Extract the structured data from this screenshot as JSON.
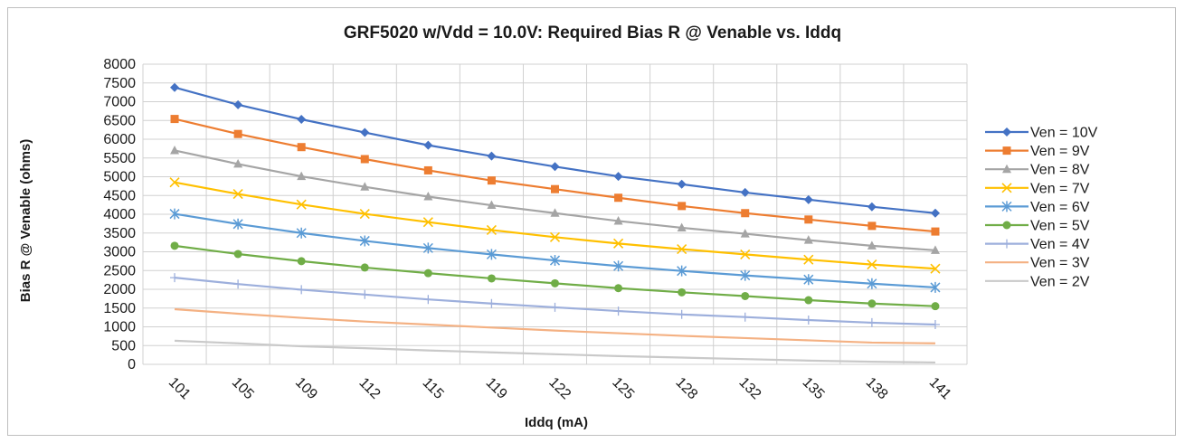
{
  "chart_data": {
    "type": "line",
    "title": "GRF5020 w/Vdd = 10.0V:  Required Bias R @ Venable vs. Iddq",
    "xlabel": "Iddq (mA)",
    "ylabel": "Bias R @ Venable (ohms)",
    "categories": [
      "101",
      "105",
      "109",
      "112",
      "115",
      "119",
      "122",
      "125",
      "128",
      "132",
      "135",
      "138",
      "141"
    ],
    "ylim": [
      0,
      8000
    ],
    "yticks": [
      0,
      500,
      1000,
      1500,
      2000,
      2500,
      3000,
      3500,
      4000,
      4500,
      5000,
      5500,
      6000,
      6500,
      7000,
      7500,
      8000
    ],
    "grid": true,
    "legend_position": "right",
    "series": [
      {
        "name": "Ven = 10V",
        "color": "#4472c4",
        "marker": "diamond",
        "values": [
          7380,
          6920,
          6530,
          6180,
          5840,
          5550,
          5270,
          5010,
          4800,
          4580,
          4390,
          4200,
          4030
        ]
      },
      {
        "name": "Ven = 9V",
        "color": "#ed7d31",
        "marker": "square",
        "values": [
          6540,
          6140,
          5790,
          5470,
          5170,
          4900,
          4670,
          4440,
          4220,
          4030,
          3860,
          3690,
          3540
        ]
      },
      {
        "name": "Ven = 8V",
        "color": "#a5a5a5",
        "marker": "triangle",
        "values": [
          5700,
          5340,
          5010,
          4730,
          4470,
          4240,
          4030,
          3820,
          3640,
          3480,
          3310,
          3160,
          3040
        ]
      },
      {
        "name": "Ven = 7V",
        "color": "#ffc000",
        "marker": "x",
        "values": [
          4850,
          4540,
          4260,
          4010,
          3790,
          3580,
          3390,
          3220,
          3070,
          2930,
          2790,
          2660,
          2550
        ]
      },
      {
        "name": "Ven = 6V",
        "color": "#5b9bd5",
        "marker": "star",
        "values": [
          4010,
          3740,
          3500,
          3290,
          3100,
          2930,
          2770,
          2620,
          2490,
          2370,
          2260,
          2150,
          2050
        ]
      },
      {
        "name": "Ven = 5V",
        "color": "#70ad47",
        "marker": "circle",
        "values": [
          3160,
          2940,
          2750,
          2580,
          2430,
          2290,
          2160,
          2030,
          1920,
          1820,
          1710,
          1620,
          1550
        ]
      },
      {
        "name": "Ven = 4V",
        "color": "#9dafdc",
        "marker": "plus",
        "values": [
          2310,
          2140,
          1990,
          1860,
          1730,
          1620,
          1520,
          1420,
          1330,
          1260,
          1180,
          1110,
          1060
        ]
      },
      {
        "name": "Ven = 3V",
        "color": "#f4b183",
        "marker": "none",
        "values": [
          1470,
          1350,
          1240,
          1140,
          1060,
          980,
          900,
          830,
          760,
          700,
          640,
          580,
          560
        ]
      },
      {
        "name": "Ven = 2V",
        "color": "#c9c9c9",
        "marker": "none",
        "values": [
          630,
          560,
          480,
          430,
          370,
          320,
          270,
          220,
          180,
          140,
          100,
          70,
          50
        ]
      }
    ]
  }
}
